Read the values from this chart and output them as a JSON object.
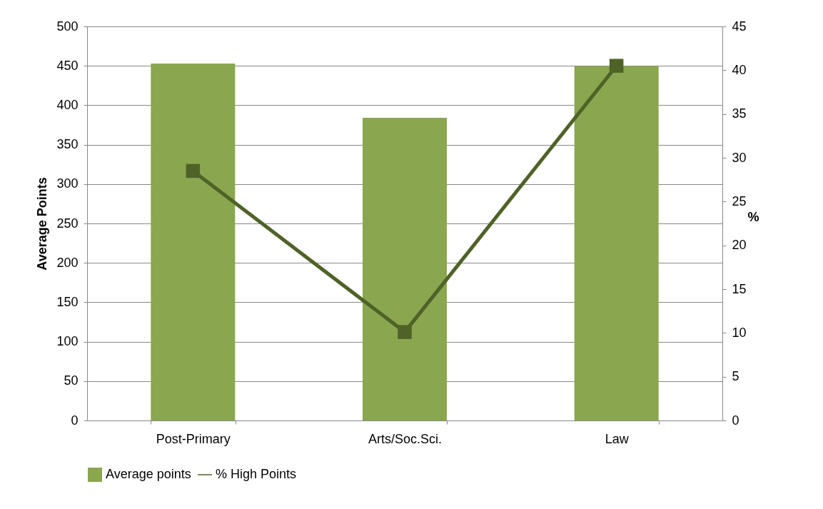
{
  "chart_data": {
    "type": "bar",
    "ylabel": "Average Points",
    "y2label": "%",
    "categories": [
      "Post-Primary",
      "Arts/Soc.Sci.",
      "Law"
    ],
    "series": [
      {
        "name": "Average points",
        "color": "#8aa64f",
        "values": [
          453,
          384,
          450
        ]
      },
      {
        "name": "% High Points",
        "type": "line",
        "axis": "y2",
        "color": "#4f6228",
        "marker": "square",
        "values": [
          28.5,
          10.1,
          40.5
        ]
      }
    ],
    "ylim": [
      0,
      500
    ],
    "yticks": [
      0,
      50,
      100,
      150,
      200,
      250,
      300,
      350,
      400,
      450,
      500
    ],
    "y2lim": [
      0,
      45
    ],
    "y2ticks": [
      0,
      5,
      10,
      15,
      20,
      25,
      30,
      35,
      40,
      45
    ],
    "grid": "y",
    "legend": "bottom"
  }
}
